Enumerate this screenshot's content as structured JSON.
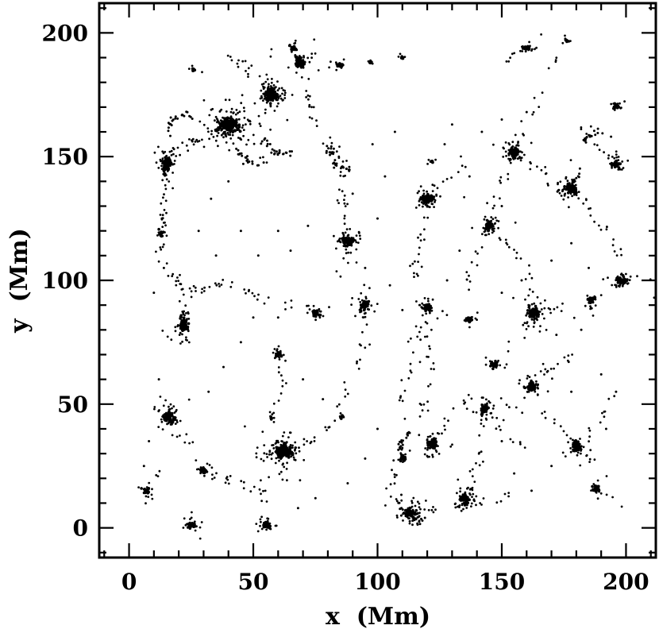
{
  "figure": {
    "background": "#ffffff",
    "frame_color": "#000000",
    "point_color": "#000000"
  },
  "chart_data": {
    "type": "scatter",
    "title": "",
    "xlabel": "x  (Mm)",
    "ylabel": "y  (Mm)",
    "xlim": [
      -12,
      212
    ],
    "ylim": [
      -12,
      212
    ],
    "xticks": [
      0,
      50,
      100,
      150,
      200
    ],
    "yticks": [
      0,
      50,
      100,
      150,
      200
    ],
    "minor_tick_step": 10,
    "grid": false,
    "legend": "none",
    "seed": 42,
    "clusters": [
      {
        "x": 40,
        "y": 163,
        "n": 260,
        "sx": 4.5,
        "sy": 3
      },
      {
        "x": 57,
        "y": 175,
        "n": 170,
        "sx": 3,
        "sy": 3
      },
      {
        "x": 69,
        "y": 188,
        "n": 80,
        "sx": 2.2,
        "sy": 2.2
      },
      {
        "x": 66,
        "y": 194,
        "n": 30,
        "sx": 1.3,
        "sy": 1.3
      },
      {
        "x": 15,
        "y": 147,
        "n": 120,
        "sx": 1.8,
        "sy": 3.2
      },
      {
        "x": 26,
        "y": 185,
        "n": 12,
        "sx": 1,
        "sy": 1
      },
      {
        "x": 85,
        "y": 187,
        "n": 26,
        "sx": 1.5,
        "sy": 1.2
      },
      {
        "x": 110,
        "y": 190,
        "n": 10,
        "sx": 0.9,
        "sy": 0.9
      },
      {
        "x": 160,
        "y": 194,
        "n": 30,
        "sx": 2.4,
        "sy": 1.2
      },
      {
        "x": 176,
        "y": 197,
        "n": 12,
        "sx": 1,
        "sy": 1
      },
      {
        "x": 196,
        "y": 170,
        "n": 26,
        "sx": 1.3,
        "sy": 1.5
      },
      {
        "x": 155,
        "y": 152,
        "n": 90,
        "sx": 2.2,
        "sy": 2.2
      },
      {
        "x": 178,
        "y": 137,
        "n": 85,
        "sx": 2.2,
        "sy": 2.4
      },
      {
        "x": 196,
        "y": 147,
        "n": 45,
        "sx": 1.8,
        "sy": 1.8
      },
      {
        "x": 120,
        "y": 133,
        "n": 100,
        "sx": 2.4,
        "sy": 2
      },
      {
        "x": 145,
        "y": 122,
        "n": 75,
        "sx": 2,
        "sy": 2
      },
      {
        "x": 88,
        "y": 116,
        "n": 95,
        "sx": 2.3,
        "sy": 2.3
      },
      {
        "x": 95,
        "y": 90,
        "n": 65,
        "sx": 2,
        "sy": 2
      },
      {
        "x": 75,
        "y": 87,
        "n": 38,
        "sx": 1.7,
        "sy": 1.7
      },
      {
        "x": 120,
        "y": 89,
        "n": 48,
        "sx": 1.9,
        "sy": 1.9
      },
      {
        "x": 137,
        "y": 84,
        "n": 22,
        "sx": 1.4,
        "sy": 1.4
      },
      {
        "x": 163,
        "y": 87,
        "n": 100,
        "sx": 2.3,
        "sy": 2.5
      },
      {
        "x": 186,
        "y": 92,
        "n": 38,
        "sx": 1.7,
        "sy": 1.7
      },
      {
        "x": 198,
        "y": 100,
        "n": 70,
        "sx": 2.8,
        "sy": 1.8
      },
      {
        "x": 22,
        "y": 82,
        "n": 85,
        "sx": 1.9,
        "sy": 3.2
      },
      {
        "x": 16,
        "y": 45,
        "n": 105,
        "sx": 2.3,
        "sy": 2.6
      },
      {
        "x": 62,
        "y": 31,
        "n": 200,
        "sx": 3.4,
        "sy": 2.8
      },
      {
        "x": 30,
        "y": 23,
        "n": 38,
        "sx": 1.7,
        "sy": 1.7
      },
      {
        "x": 25,
        "y": 1,
        "n": 45,
        "sx": 1.8,
        "sy": 1.5
      },
      {
        "x": 55,
        "y": 1,
        "n": 55,
        "sx": 2,
        "sy": 1.6
      },
      {
        "x": 113,
        "y": 6,
        "n": 85,
        "sx": 2.6,
        "sy": 2
      },
      {
        "x": 135,
        "y": 12,
        "n": 100,
        "sx": 2.4,
        "sy": 2.2
      },
      {
        "x": 122,
        "y": 34,
        "n": 85,
        "sx": 2.3,
        "sy": 2.2
      },
      {
        "x": 110,
        "y": 28,
        "n": 26,
        "sx": 1.4,
        "sy": 1.4
      },
      {
        "x": 143,
        "y": 48,
        "n": 55,
        "sx": 1.9,
        "sy": 1.9
      },
      {
        "x": 162,
        "y": 57,
        "n": 85,
        "sx": 2.1,
        "sy": 2.3
      },
      {
        "x": 147,
        "y": 66,
        "n": 36,
        "sx": 1.6,
        "sy": 1.6
      },
      {
        "x": 180,
        "y": 33,
        "n": 75,
        "sx": 2.1,
        "sy": 2.1
      },
      {
        "x": 188,
        "y": 16,
        "n": 36,
        "sx": 1.6,
        "sy": 1.6
      },
      {
        "x": 7,
        "y": 15,
        "n": 28,
        "sx": 1.5,
        "sy": 1.5
      },
      {
        "x": 60,
        "y": 70,
        "n": 32,
        "sx": 1.5,
        "sy": 1.5
      },
      {
        "x": 13,
        "y": 119,
        "n": 22,
        "sx": 1,
        "sy": 2.4
      },
      {
        "x": 122,
        "y": 148,
        "n": 10,
        "sx": 1,
        "sy": 1
      },
      {
        "x": 86,
        "y": 45,
        "n": 8,
        "sx": 0.8,
        "sy": 0.8
      },
      {
        "x": 57,
        "y": 44,
        "n": 8,
        "sx": 0.8,
        "sy": 0.8
      },
      {
        "x": 97,
        "y": 188,
        "n": 8,
        "sx": 0.8,
        "sy": 0.8
      }
    ],
    "chains": [
      [
        15,
        147,
        13,
        110,
        24
      ],
      [
        13,
        110,
        22,
        95,
        14
      ],
      [
        22,
        95,
        22,
        82,
        10
      ],
      [
        22,
        95,
        40,
        98,
        16
      ],
      [
        40,
        98,
        55,
        93,
        10
      ],
      [
        55,
        93,
        75,
        88,
        9
      ],
      [
        40,
        163,
        24,
        156,
        16
      ],
      [
        24,
        156,
        15,
        147,
        10
      ],
      [
        40,
        163,
        55,
        148,
        12
      ],
      [
        57,
        175,
        47,
        186,
        10
      ],
      [
        47,
        186,
        40,
        191,
        7
      ],
      [
        70,
        181,
        75,
        162,
        12
      ],
      [
        75,
        162,
        85,
        150,
        10
      ],
      [
        85,
        150,
        88,
        116,
        22
      ],
      [
        88,
        116,
        85,
        100,
        10
      ],
      [
        95,
        90,
        95,
        75,
        9
      ],
      [
        95,
        75,
        89,
        60,
        8
      ],
      [
        89,
        60,
        85,
        46,
        7
      ],
      [
        60,
        70,
        62,
        56,
        7
      ],
      [
        62,
        56,
        57,
        45,
        6
      ],
      [
        16,
        45,
        25,
        34,
        9
      ],
      [
        30,
        23,
        42,
        19,
        8
      ],
      [
        42,
        19,
        54,
        14,
        8
      ],
      [
        54,
        14,
        55,
        4,
        6
      ],
      [
        62,
        31,
        75,
        36,
        10
      ],
      [
        75,
        36,
        85,
        45,
        7
      ],
      [
        62,
        31,
        50,
        29,
        8
      ],
      [
        113,
        6,
        125,
        8,
        9
      ],
      [
        135,
        12,
        140,
        25,
        9
      ],
      [
        140,
        25,
        143,
        48,
        13
      ],
      [
        122,
        34,
        131,
        45,
        8
      ],
      [
        131,
        45,
        140,
        55,
        7
      ],
      [
        143,
        48,
        155,
        52,
        7
      ],
      [
        162,
        57,
        172,
        65,
        8
      ],
      [
        172,
        65,
        180,
        70,
        6
      ],
      [
        163,
        87,
        155,
        76,
        8
      ],
      [
        163,
        87,
        175,
        90,
        7
      ],
      [
        120,
        89,
        115,
        75,
        8
      ],
      [
        115,
        75,
        112,
        60,
        8
      ],
      [
        112,
        60,
        110,
        45,
        7
      ],
      [
        120,
        133,
        118,
        120,
        8
      ],
      [
        118,
        120,
        115,
        105,
        8
      ],
      [
        115,
        105,
        112,
        95,
        6
      ],
      [
        145,
        122,
        140,
        110,
        8
      ],
      [
        140,
        110,
        135,
        96,
        8
      ],
      [
        155,
        152,
        165,
        145,
        9
      ],
      [
        165,
        145,
        175,
        138,
        8
      ],
      [
        178,
        137,
        186,
        128,
        8
      ],
      [
        186,
        128,
        193,
        119,
        7
      ],
      [
        193,
        119,
        198,
        110,
        6
      ],
      [
        196,
        147,
        189,
        155,
        8
      ],
      [
        189,
        155,
        181,
        162,
        6
      ],
      [
        155,
        152,
        150,
        140,
        6
      ],
      [
        150,
        140,
        148,
        130,
        5
      ],
      [
        120,
        133,
        128,
        141,
        6
      ],
      [
        128,
        141,
        136,
        148,
        5
      ],
      [
        145,
        122,
        153,
        114,
        5
      ],
      [
        153,
        114,
        160,
        105,
        6
      ],
      [
        160,
        105,
        163,
        95,
        5
      ],
      [
        180,
        33,
        190,
        24,
        7
      ],
      [
        188,
        16,
        195,
        10,
        5
      ],
      [
        180,
        33,
        172,
        41,
        6
      ],
      [
        172,
        41,
        165,
        50,
        5
      ],
      [
        7,
        15,
        12,
        23,
        5
      ],
      [
        25,
        1,
        25,
        10,
        5
      ],
      [
        113,
        6,
        105,
        15,
        7
      ],
      [
        105,
        15,
        108,
        25,
        5
      ],
      [
        122,
        34,
        118,
        43,
        5
      ],
      [
        118,
        43,
        120,
        55,
        7
      ],
      [
        120,
        55,
        122,
        66,
        5
      ],
      [
        122,
        66,
        120,
        80,
        7
      ],
      [
        135,
        12,
        146,
        10,
        6
      ],
      [
        146,
        10,
        155,
        14,
        5
      ],
      [
        160,
        194,
        150,
        190,
        6
      ],
      [
        155,
        152,
        159,
        163,
        5
      ],
      [
        159,
        163,
        165,
        176,
        5
      ],
      [
        165,
        176,
        172,
        190,
        5
      ],
      [
        180,
        33,
        190,
        45,
        6
      ],
      [
        190,
        45,
        196,
        55,
        5
      ],
      [
        143,
        48,
        152,
        38,
        6
      ],
      [
        152,
        38,
        160,
        32,
        5
      ]
    ],
    "arcs": [
      [
        62,
        158,
        7,
        190,
        300,
        26
      ],
      [
        53,
        157,
        10,
        200,
        280,
        20
      ],
      [
        88,
        152,
        7,
        160,
        280,
        30
      ],
      [
        22,
        161,
        6,
        60,
        200,
        22
      ],
      [
        115,
        32,
        6,
        100,
        230,
        20
      ],
      [
        116,
        10,
        7,
        150,
        300,
        26
      ],
      [
        170,
        148,
        12,
        280,
        345,
        20
      ],
      [
        190,
        152,
        8,
        60,
        160,
        16
      ]
    ],
    "singles": [
      [
        33,
        133
      ],
      [
        45,
        120
      ],
      [
        52,
        110
      ],
      [
        65,
        112
      ],
      [
        72,
        122
      ],
      [
        100,
        125
      ],
      [
        103,
        142
      ],
      [
        98,
        155
      ],
      [
        107,
        160
      ],
      [
        130,
        163
      ],
      [
        142,
        160
      ],
      [
        127,
        155
      ],
      [
        150,
        165
      ],
      [
        160,
        168
      ],
      [
        137,
        142
      ],
      [
        60,
        120
      ],
      [
        40,
        140
      ],
      [
        28,
        120
      ],
      [
        35,
        110
      ],
      [
        90,
        135
      ],
      [
        95,
        105
      ],
      [
        105,
        98
      ],
      [
        110,
        88
      ],
      [
        128,
        100
      ],
      [
        133,
        112
      ],
      [
        150,
        95
      ],
      [
        158,
        100
      ],
      [
        170,
        108
      ],
      [
        178,
        115
      ],
      [
        185,
        105
      ],
      [
        60,
        85
      ],
      [
        50,
        85
      ],
      [
        45,
        75
      ],
      [
        38,
        65
      ],
      [
        32,
        55
      ],
      [
        70,
        60
      ],
      [
        78,
        52
      ],
      [
        100,
        40
      ],
      [
        95,
        28
      ],
      [
        88,
        18
      ],
      [
        75,
        12
      ],
      [
        68,
        8
      ],
      [
        150,
        35
      ],
      [
        155,
        22
      ],
      [
        162,
        15
      ],
      [
        170,
        25
      ],
      [
        192,
        40
      ],
      [
        196,
        55
      ],
      [
        190,
        62
      ],
      [
        178,
        55
      ],
      [
        172,
        78
      ],
      [
        182,
        80
      ],
      [
        150,
        130
      ],
      [
        12,
        60
      ],
      [
        8,
        35
      ],
      [
        10,
        95
      ],
      [
        14,
        105
      ],
      [
        6,
        25
      ]
    ]
  }
}
